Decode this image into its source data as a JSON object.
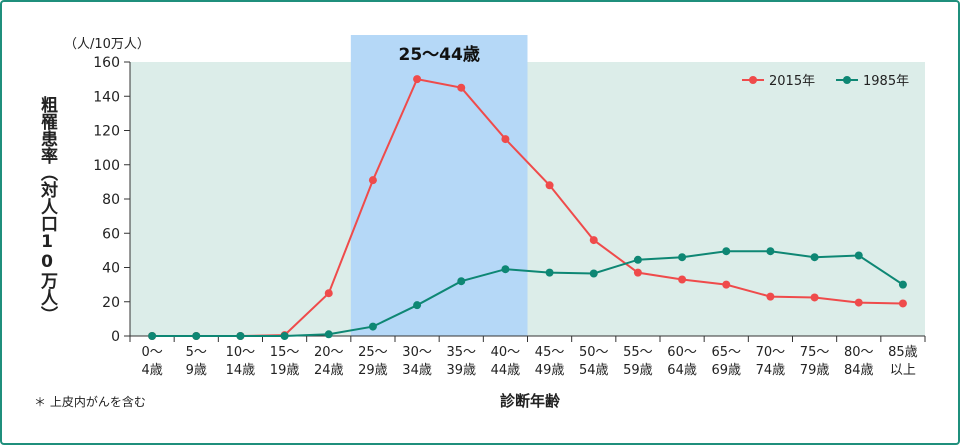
{
  "chart_data": {
    "type": "line",
    "categories": [
      [
        "0～",
        "4歳"
      ],
      [
        "5～",
        "9歳"
      ],
      [
        "10～",
        "14歳"
      ],
      [
        "15～",
        "19歳"
      ],
      [
        "20～",
        "24歳"
      ],
      [
        "25～",
        "29歳"
      ],
      [
        "30～",
        "34歳"
      ],
      [
        "35～",
        "39歳"
      ],
      [
        "40～",
        "44歳"
      ],
      [
        "45～",
        "49歳"
      ],
      [
        "50～",
        "54歳"
      ],
      [
        "55～",
        "59歳"
      ],
      [
        "60～",
        "64歳"
      ],
      [
        "65～",
        "69歳"
      ],
      [
        "70～",
        "74歳"
      ],
      [
        "75～",
        "79歳"
      ],
      [
        "80～",
        "84歳"
      ],
      [
        "85歳",
        "以上"
      ]
    ],
    "series": [
      {
        "name": "2015年",
        "color": "#ef4b4b",
        "values": [
          0,
          0,
          0,
          0.5,
          25,
          91,
          150,
          145,
          115,
          88,
          56,
          37,
          33,
          30,
          23,
          22.5,
          19.5,
          19
        ]
      },
      {
        "name": "1985年",
        "color": "#0e8774",
        "values": [
          0,
          0,
          0,
          0,
          1,
          5.5,
          18,
          32,
          39,
          37,
          36.5,
          44.5,
          46,
          49.5,
          49.5,
          46,
          47,
          30
        ]
      }
    ],
    "ylabel": "粗罹患率（対人口10万人）",
    "yunit": "（人/10万人）",
    "xlabel": "診断年齢",
    "ylim": [
      0,
      160
    ],
    "yticks": [
      0,
      20,
      40,
      60,
      80,
      100,
      120,
      140,
      160
    ],
    "highlight": {
      "label": "25～44歳",
      "from_category": 5,
      "to_category": 8,
      "color": "#b5d8f7"
    },
    "plot_background": "#dcede9",
    "legend_position": "top-right",
    "footnote": "＊ 上皮内がんを含む"
  }
}
